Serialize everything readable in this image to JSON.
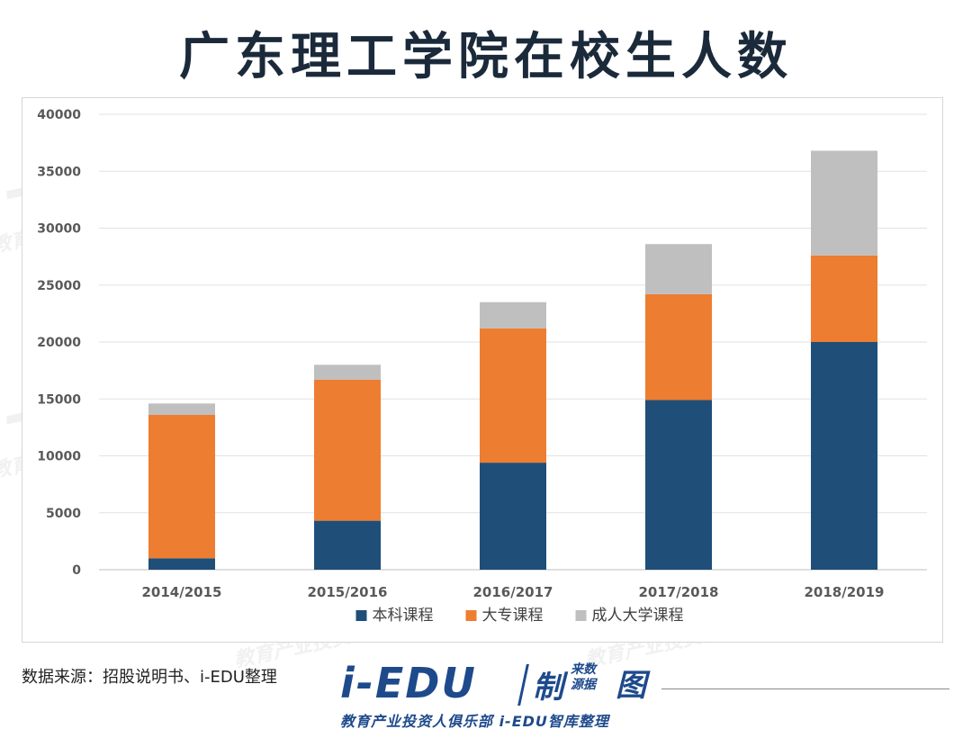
{
  "title": "广东理工学院在校生人数",
  "source": "数据来源：招股说明书、i-EDU整理",
  "logo": {
    "main": "i-EDU",
    "zhi": "制",
    "small": "来数\n源据",
    "tu": "图",
    "sub": "教育产业投资人俱乐部  i-EDU智库整理"
  },
  "watermark": {
    "big": "i-EDU",
    "small": "教育产业投资人俱乐部"
  },
  "colors": {
    "undergrad": "#1f4e79",
    "junior": "#ed7d31",
    "adult": "#bfbfbf"
  },
  "chart_data": {
    "type": "bar",
    "stacked": true,
    "categories": [
      "2014/2015",
      "2015/2016",
      "2016/2017",
      "2017/2018",
      "2018/2019"
    ],
    "series": [
      {
        "name": "本科课程",
        "values": [
          1000,
          4300,
          9400,
          14900,
          20000
        ]
      },
      {
        "name": "大专课程",
        "values": [
          12600,
          12400,
          11800,
          9300,
          7600
        ]
      },
      {
        "name": "成人大学课程",
        "values": [
          1000,
          1300,
          2300,
          4400,
          9200
        ]
      }
    ],
    "ylim": [
      0,
      40000
    ],
    "yticks": [
      "0",
      "5000",
      "10000",
      "15000",
      "20000",
      "25000",
      "30000",
      "35000",
      "40000"
    ],
    "grid": true,
    "legend": "bottom"
  }
}
